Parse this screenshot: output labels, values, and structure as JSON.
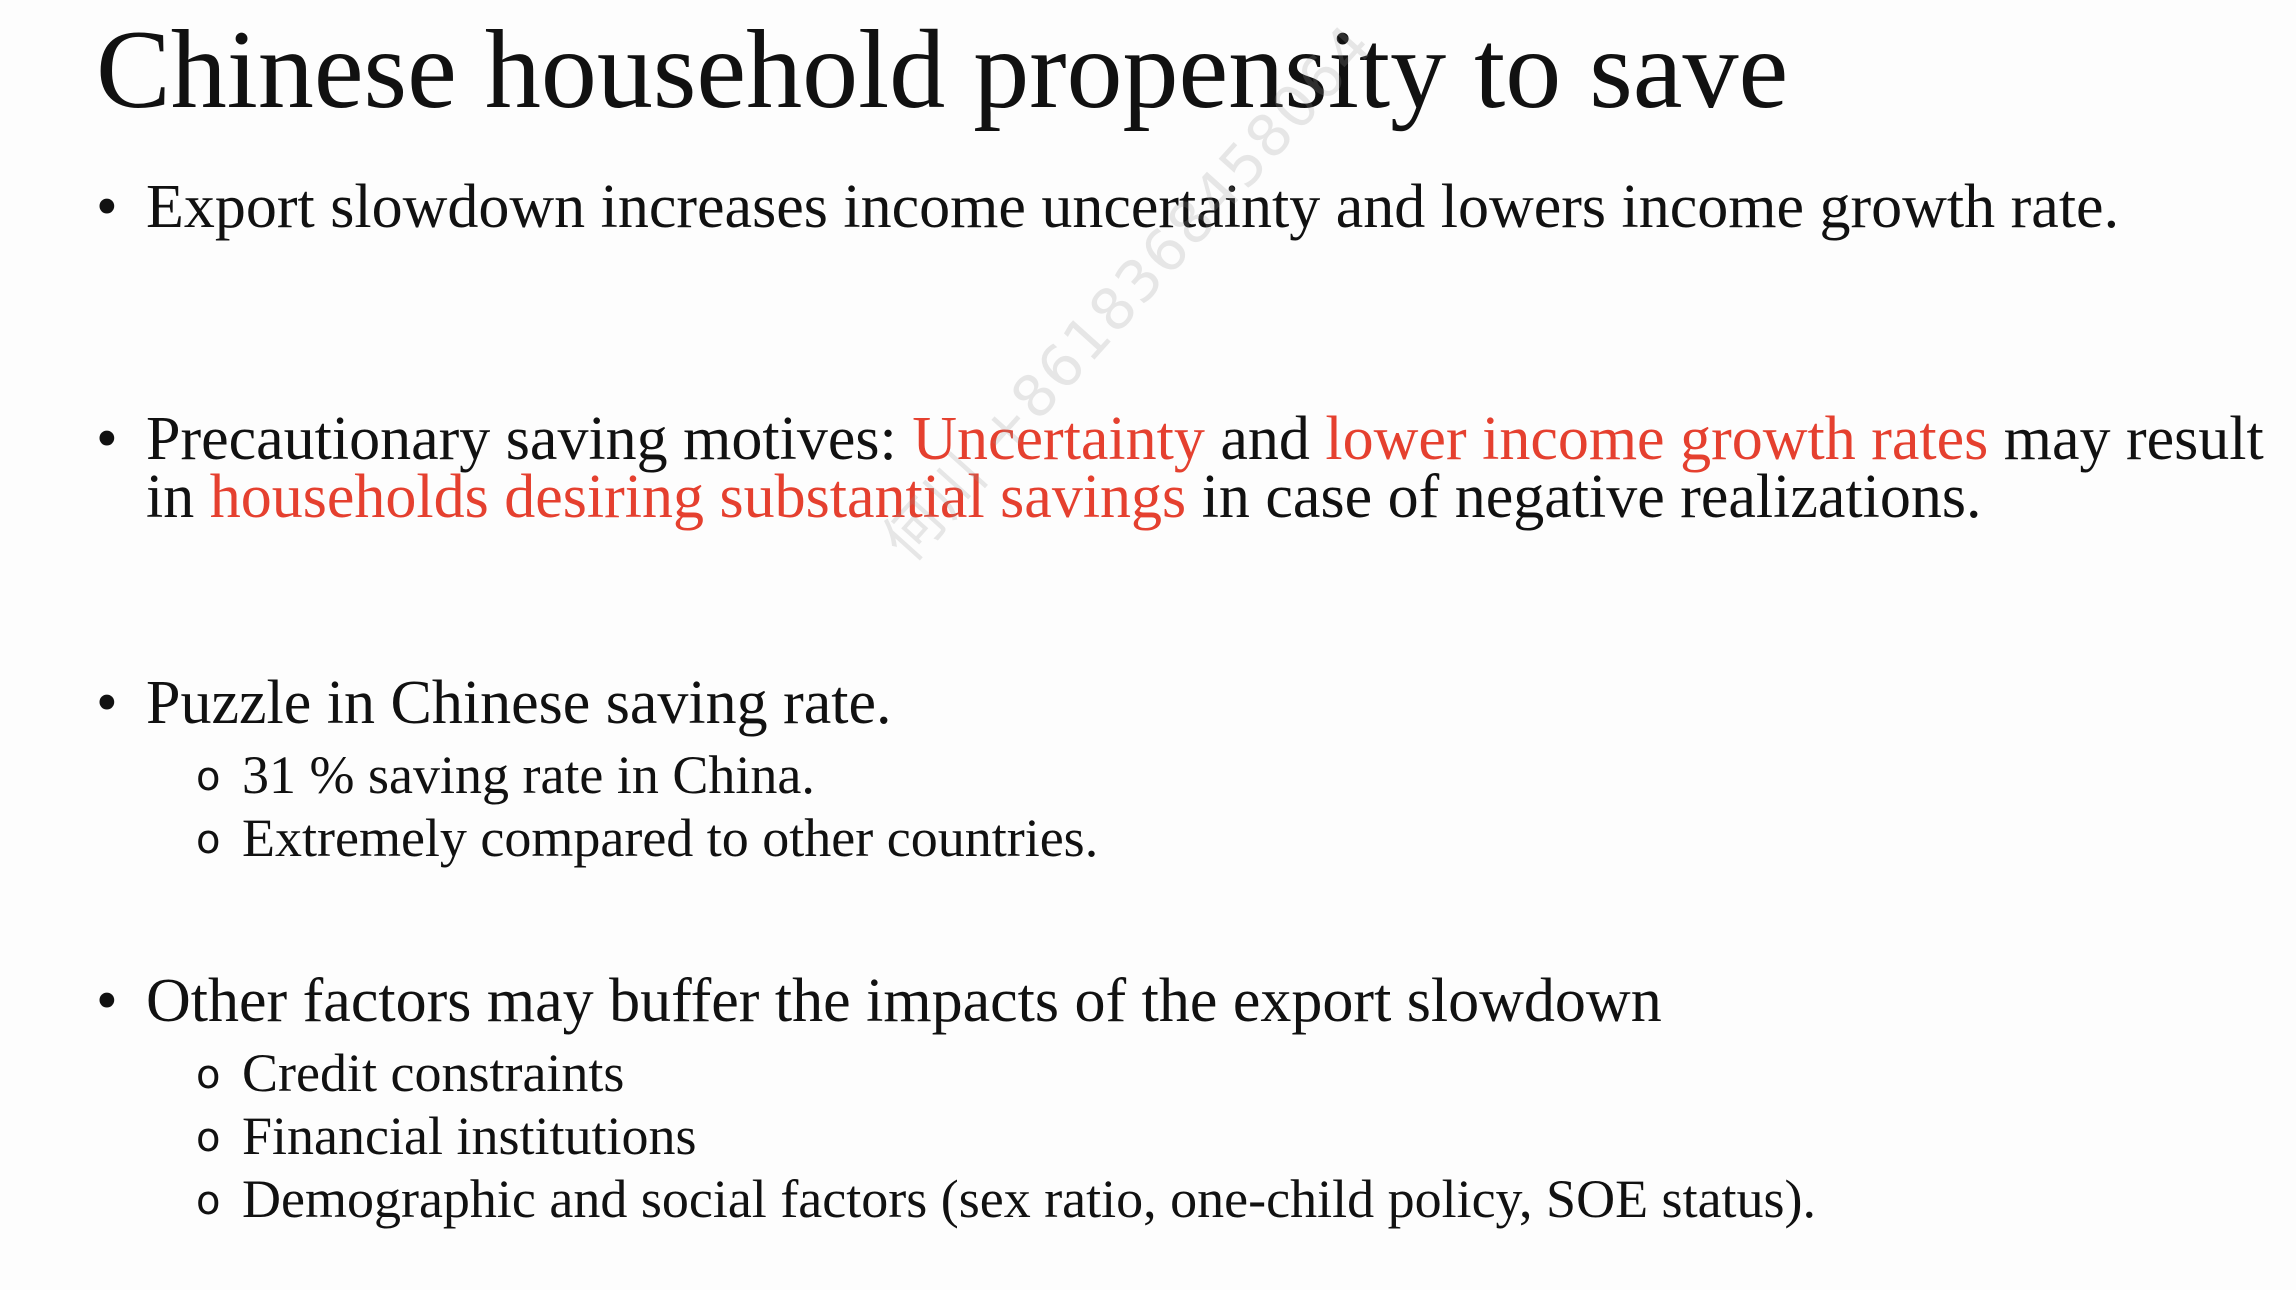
{
  "slide": {
    "title": "Chinese household propensity to save",
    "bullets": [
      {
        "marker": "•",
        "text": "Export slowdown increases income uncertainty and lowers income growth rate."
      },
      {
        "marker": "•",
        "parts": [
          {
            "text": "Precautionary saving motives: ",
            "highlight": false
          },
          {
            "text": "Uncertainty",
            "highlight": true
          },
          {
            "text": " and ",
            "highlight": false
          },
          {
            "text": "lower income growth rates",
            "highlight": true
          },
          {
            "text": " may result in ",
            "highlight": false
          },
          {
            "text": "households desiring substantial savings",
            "highlight": true
          },
          {
            "text": " in case of negative realizations.",
            "highlight": false
          }
        ]
      },
      {
        "marker": "•",
        "text": "Puzzle in Chinese saving rate.",
        "subitems": [
          "31 % saving rate in China.",
          "Extremely compared to other countries."
        ]
      },
      {
        "marker": "•",
        "text": "Other factors may buffer the impacts of the export slowdown",
        "subitems": [
          "Credit constraints",
          "Financial institutions",
          "Demographic and social factors (sex ratio, one-child policy, SOE status)."
        ]
      }
    ],
    "sub_marker": "o",
    "highlight_color": "#e5402f"
  },
  "watermark": "何川 +8618368458064"
}
